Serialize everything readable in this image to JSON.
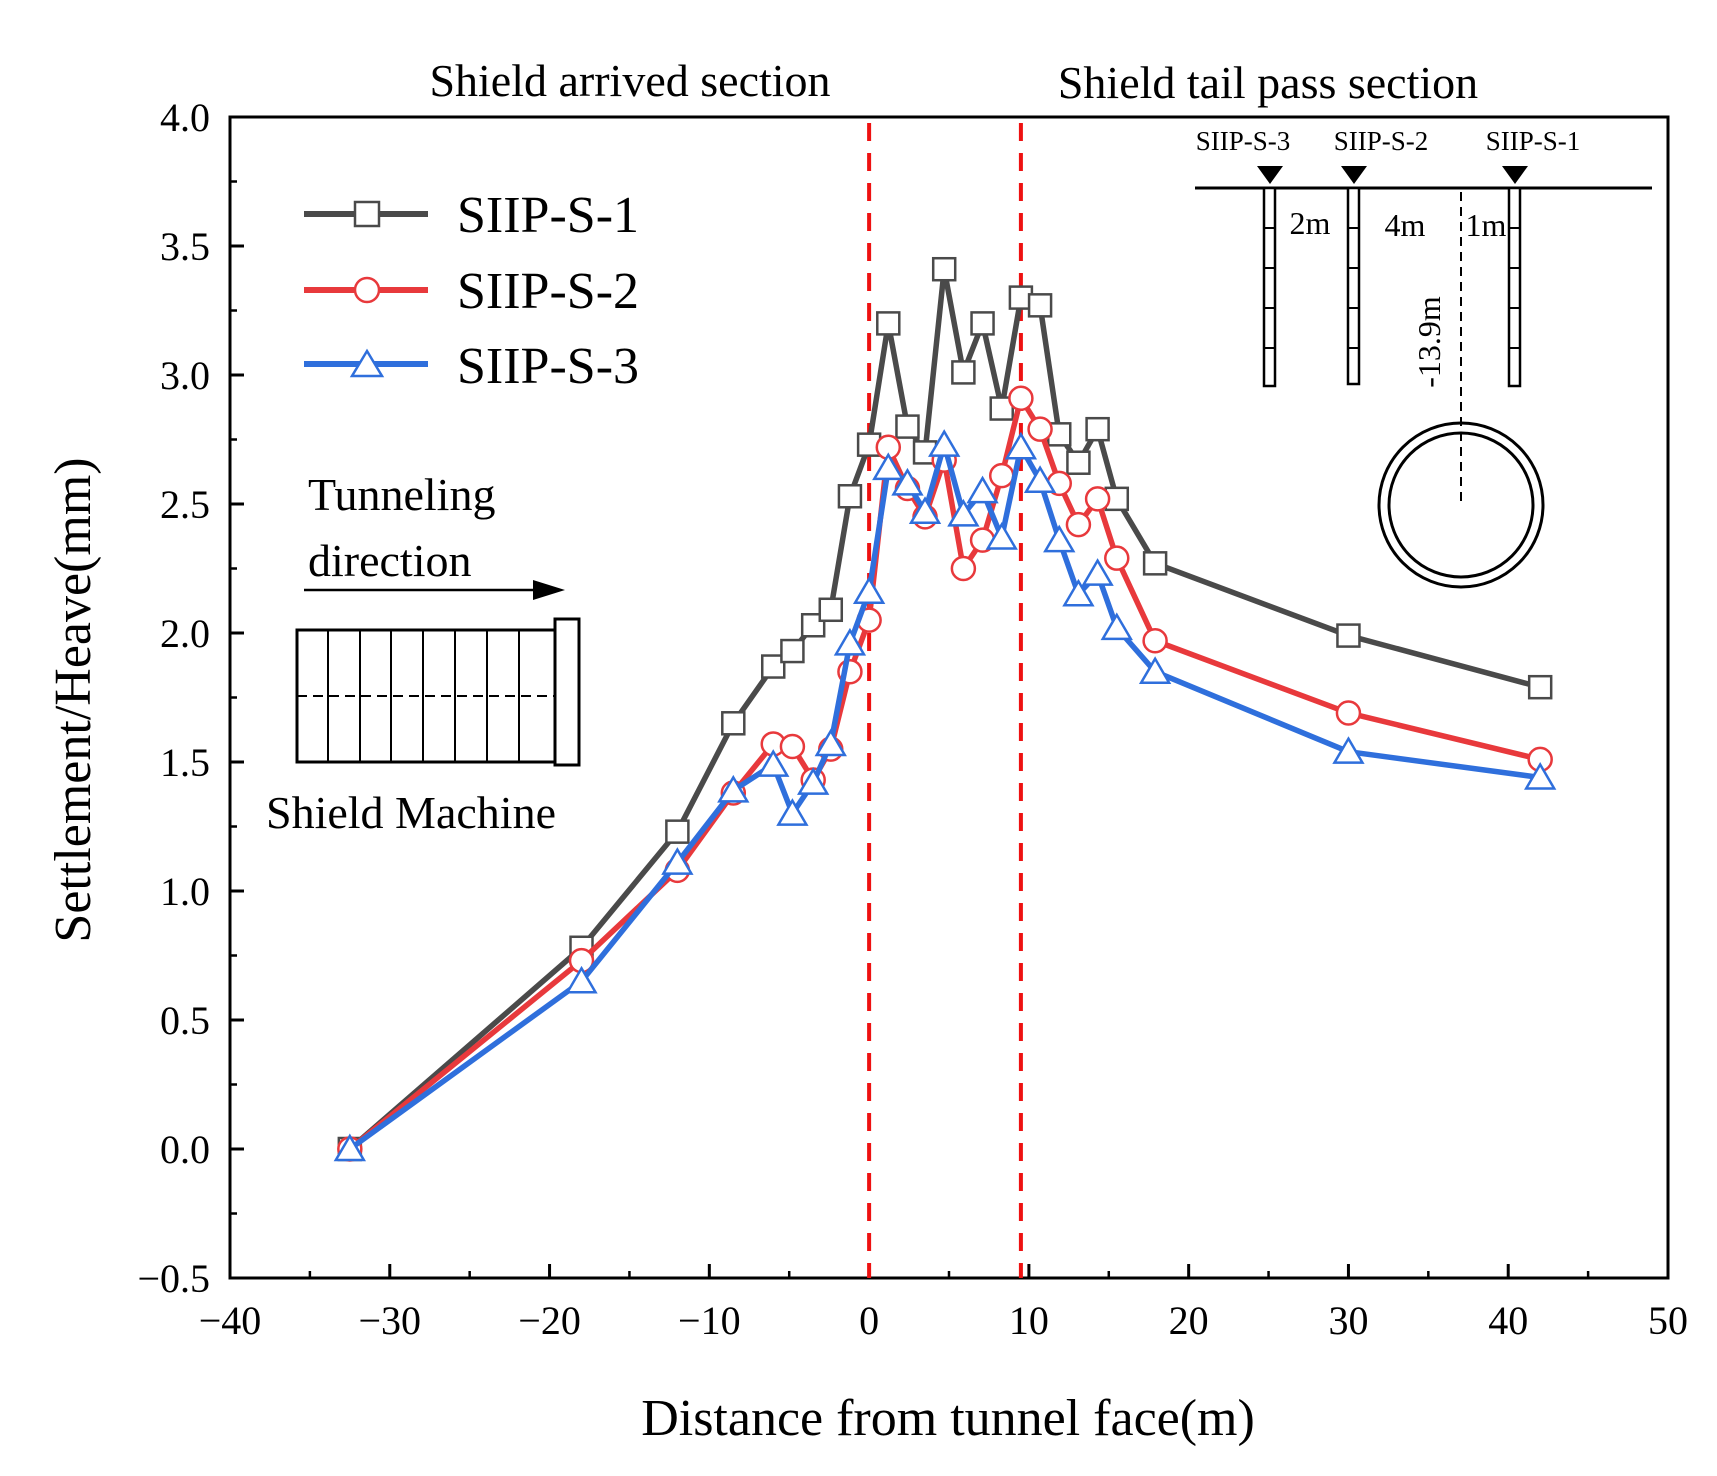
{
  "chart_data": {
    "type": "line",
    "title": "",
    "xlabel": "Distance from tunnel face(m)",
    "ylabel": "Settlement/Heave(mm)",
    "xlim": [
      -40,
      50
    ],
    "ylim": [
      -0.5,
      4.0
    ],
    "x_ticks": [
      -40,
      -30,
      -20,
      -10,
      0,
      10,
      20,
      30,
      40,
      50
    ],
    "x_tick_labels": [
      "−40",
      "−30",
      "−20",
      "−10",
      "0",
      "10",
      "20",
      "30",
      "40",
      "50"
    ],
    "y_ticks": [
      -0.5,
      0.0,
      0.5,
      1.0,
      1.5,
      2.0,
      2.5,
      3.0,
      3.5,
      4.0
    ],
    "y_tick_labels": [
      "−0.5",
      "0.0",
      "0.5",
      "1.0",
      "1.5",
      "2.0",
      "2.5",
      "3.0",
      "3.5",
      "4.0"
    ],
    "grid": false,
    "legend_position": "top-left",
    "colors": {
      "s1": "#4a4a4a",
      "s2": "#e8393c",
      "s3": "#2f6fdc",
      "ref": "#ee1111"
    },
    "series": [
      {
        "name": "SIIP-S-1",
        "color": "#4a4a4a",
        "marker": "square",
        "x": [
          -32.5,
          -18,
          -12,
          -8.5,
          -6,
          -4.8,
          -3.5,
          -2.4,
          -1.2,
          0,
          1.2,
          2.4,
          3.5,
          4.7,
          5.9,
          7.1,
          8.3,
          9.5,
          10.7,
          11.9,
          13.1,
          14.3,
          15.5,
          17.9,
          30,
          42
        ],
        "y": [
          0.0,
          0.78,
          1.23,
          1.65,
          1.87,
          1.93,
          2.03,
          2.09,
          2.53,
          2.73,
          3.2,
          2.8,
          2.7,
          3.41,
          3.01,
          3.2,
          2.87,
          3.3,
          3.27,
          2.77,
          2.66,
          2.79,
          2.52,
          2.27,
          1.99,
          1.79
        ]
      },
      {
        "name": "SIIP-S-2",
        "color": "#e8393c",
        "marker": "circle",
        "x": [
          -32.5,
          -18,
          -12,
          -8.5,
          -6,
          -4.8,
          -3.5,
          -2.4,
          -1.2,
          0,
          1.2,
          2.4,
          3.5,
          4.7,
          5.9,
          7.1,
          8.3,
          9.5,
          10.7,
          11.9,
          13.1,
          14.3,
          15.5,
          17.9,
          30,
          42
        ],
        "y": [
          0.0,
          0.73,
          1.08,
          1.38,
          1.57,
          1.56,
          1.43,
          1.55,
          1.85,
          2.05,
          2.72,
          2.56,
          2.45,
          2.67,
          2.25,
          2.36,
          2.61,
          2.91,
          2.79,
          2.58,
          2.42,
          2.52,
          2.29,
          1.97,
          1.69,
          1.51
        ]
      },
      {
        "name": "SIIP-S-3",
        "color": "#2f6fdc",
        "marker": "triangle",
        "x": [
          -32.5,
          -18,
          -12,
          -8.5,
          -6,
          -4.8,
          -3.5,
          -2.4,
          -1.2,
          0,
          1.2,
          2.4,
          3.5,
          4.7,
          5.9,
          7.1,
          8.3,
          9.5,
          10.7,
          11.9,
          13.1,
          14.3,
          15.5,
          17.9,
          30,
          42
        ],
        "y": [
          0.0,
          0.65,
          1.11,
          1.39,
          1.49,
          1.3,
          1.42,
          1.57,
          1.96,
          2.16,
          2.64,
          2.58,
          2.47,
          2.73,
          2.46,
          2.55,
          2.37,
          2.72,
          2.59,
          2.36,
          2.15,
          2.23,
          2.02,
          1.85,
          1.54,
          1.44
        ]
      }
    ],
    "reference_lines": [
      {
        "x": 0,
        "label": "Shield arrived section"
      },
      {
        "x": 9.5,
        "label": "Shield tail pass section"
      }
    ],
    "annotations": {
      "tunneling_label_line1": "Tunneling",
      "tunneling_label_line2": "direction",
      "machine_label": "Shield Machine",
      "inset_marker_1": "SIIP-S-3",
      "inset_marker_2": "SIIP-S-2",
      "inset_marker_3": "SIIP-S-1",
      "inset_dist_1": "2m",
      "inset_dist_2": "4m",
      "inset_dist_3": "1m",
      "inset_depth": "-13.9m"
    }
  }
}
